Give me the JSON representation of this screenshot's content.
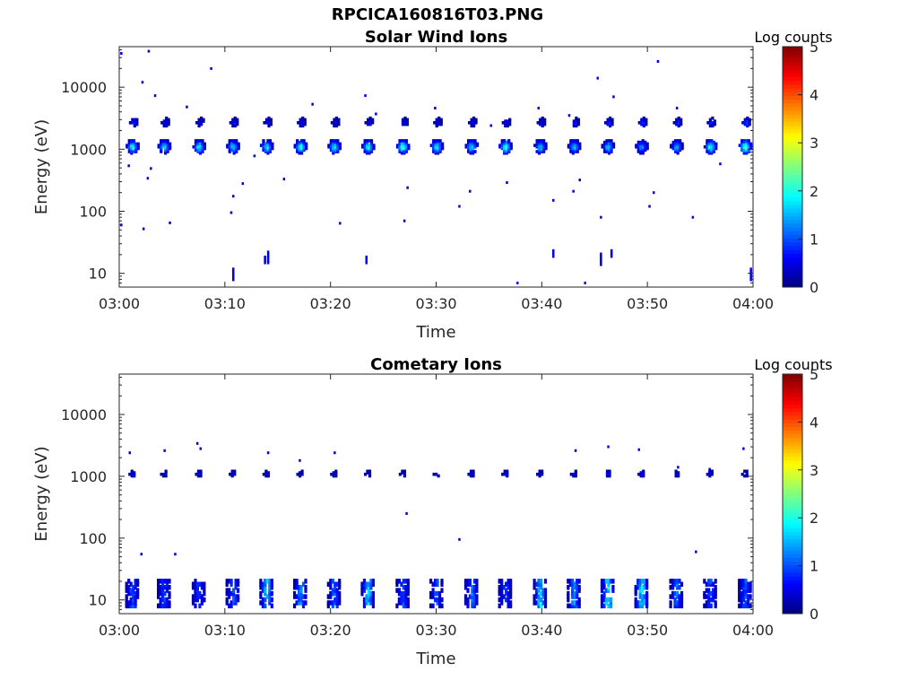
{
  "page_title": "RPCICA160816T03.PNG",
  "chart_data": [
    {
      "type": "heatmap",
      "title": "Solar Wind Ions",
      "xlabel": "Time",
      "ylabel": "Energy (eV)",
      "x_ticks": [
        "03:00",
        "03:10",
        "03:20",
        "03:30",
        "03:40",
        "03:50",
        "04:00"
      ],
      "xlim_minutes": [
        0,
        60
      ],
      "y_ticks": [
        "10",
        "100",
        "1000",
        "10000"
      ],
      "y_tick_values": [
        10,
        100,
        1000,
        10000
      ],
      "ylim": [
        6,
        45000
      ],
      "yscale": "log",
      "colorbar_label": "Log counts",
      "colorbar_ticks": [
        "0",
        "1",
        "2",
        "3",
        "4",
        "5"
      ],
      "clim": [
        0,
        5
      ],
      "grid": false,
      "scan_minutes": [
        1.3,
        4.3,
        7.6,
        10.8,
        14.0,
        17.2,
        20.4,
        23.6,
        26.9,
        30.1,
        33.4,
        36.6,
        39.9,
        43.1,
        46.3,
        49.5,
        52.8,
        56.0,
        59.3
      ],
      "core_energy_ev": 1100,
      "core_peak_log_counts": [
        2.0,
        1.7,
        1.8,
        1.6,
        1.8,
        1.9,
        1.8,
        1.9,
        2.2,
        1.9,
        1.8,
        2.1,
        1.6,
        1.6,
        1.5,
        1.3,
        1.4,
        2.1,
        2.4
      ],
      "secondary_energy_ev": 2700,
      "secondary_peak_log_counts": [
        0.8,
        0.7,
        0.6,
        0.7,
        0.6,
        0.6,
        0.6,
        0.6,
        0.6,
        0.5,
        0.6,
        0.6,
        0.6,
        0.8,
        0.9,
        0.9,
        0.8,
        0.9,
        1.0
      ],
      "sparse_points": [
        {
          "t": 0.2,
          "e": 35000,
          "v": 0.6
        },
        {
          "t": 2.2,
          "e": 12000,
          "v": 0.5
        },
        {
          "t": 2.8,
          "e": 38000,
          "v": 0.5
        },
        {
          "t": 3.4,
          "e": 7300,
          "v": 0.4
        },
        {
          "t": 0.9,
          "e": 540,
          "v": 0.5
        },
        {
          "t": 2.7,
          "e": 340,
          "v": 0.5
        },
        {
          "t": 3.0,
          "e": 490,
          "v": 0.4
        },
        {
          "t": 0.2,
          "e": 60,
          "v": 0.5
        },
        {
          "t": 2.3,
          "e": 52,
          "v": 0.4
        },
        {
          "t": 4.8,
          "e": 65,
          "v": 0.3
        },
        {
          "t": 6.4,
          "e": 4800,
          "v": 0.4
        },
        {
          "t": 8.7,
          "e": 20000,
          "v": 0.5
        },
        {
          "t": 10.8,
          "e": 175,
          "v": 0.5
        },
        {
          "t": 11.7,
          "e": 280,
          "v": 0.4
        },
        {
          "t": 10.6,
          "e": 95,
          "v": 0.4
        },
        {
          "t": 12.8,
          "e": 780,
          "v": 0.5
        },
        {
          "t": 15.6,
          "e": 330,
          "v": 0.4
        },
        {
          "t": 18.3,
          "e": 5300,
          "v": 0.4
        },
        {
          "t": 20.9,
          "e": 64,
          "v": 0.4
        },
        {
          "t": 23.3,
          "e": 7300,
          "v": 0.5
        },
        {
          "t": 24.3,
          "e": 3700,
          "v": 0.4
        },
        {
          "t": 27.3,
          "e": 240,
          "v": 0.4
        },
        {
          "t": 27.0,
          "e": 70,
          "v": 0.3
        },
        {
          "t": 29.9,
          "e": 4600,
          "v": 0.4
        },
        {
          "t": 32.2,
          "e": 120,
          "v": 0.5
        },
        {
          "t": 33.2,
          "e": 210,
          "v": 0.4
        },
        {
          "t": 35.2,
          "e": 2400,
          "v": 0.4
        },
        {
          "t": 36.7,
          "e": 290,
          "v": 0.4
        },
        {
          "t": 37.7,
          "e": 7,
          "v": 0.7
        },
        {
          "t": 39.7,
          "e": 4600,
          "v": 0.4
        },
        {
          "t": 41.1,
          "e": 150,
          "v": 0.4
        },
        {
          "t": 42.6,
          "e": 3500,
          "v": 0.4
        },
        {
          "t": 43.0,
          "e": 210,
          "v": 0.4
        },
        {
          "t": 43.6,
          "e": 320,
          "v": 0.4
        },
        {
          "t": 44.1,
          "e": 7,
          "v": 0.7
        },
        {
          "t": 45.3,
          "e": 14000,
          "v": 0.5
        },
        {
          "t": 45.6,
          "e": 80,
          "v": 0.6
        },
        {
          "t": 46.8,
          "e": 7000,
          "v": 0.4
        },
        {
          "t": 50.2,
          "e": 120,
          "v": 0.4
        },
        {
          "t": 50.6,
          "e": 200,
          "v": 0.4
        },
        {
          "t": 51.0,
          "e": 26000,
          "v": 0.5
        },
        {
          "t": 52.8,
          "e": 4600,
          "v": 0.4
        },
        {
          "t": 54.3,
          "e": 80,
          "v": 0.6
        },
        {
          "t": 56.9,
          "e": 580,
          "v": 0.4
        }
      ],
      "low_energy_streaks": [
        {
          "t": 10.8,
          "e_lo": 8,
          "e_hi": 12,
          "v": 0.5
        },
        {
          "t": 13.8,
          "e_lo": 15,
          "e_hi": 19,
          "v": 0.5
        },
        {
          "t": 14.1,
          "e_lo": 15,
          "e_hi": 23,
          "v": 0.5
        },
        {
          "t": 23.4,
          "e_lo": 15,
          "e_hi": 19,
          "v": 0.5
        },
        {
          "t": 41.1,
          "e_lo": 19,
          "e_hi": 23,
          "v": 0.5
        },
        {
          "t": 45.6,
          "e_lo": 14,
          "e_hi": 22,
          "v": 0.5
        },
        {
          "t": 46.6,
          "e_lo": 19,
          "e_hi": 23,
          "v": 0.5
        },
        {
          "t": 59.8,
          "e_lo": 8,
          "e_hi": 12,
          "v": 0.6
        }
      ]
    },
    {
      "type": "heatmap",
      "title": "Cometary Ions",
      "xlabel": "Time",
      "ylabel": "Energy (eV)",
      "x_ticks": [
        "03:00",
        "03:10",
        "03:20",
        "03:30",
        "03:40",
        "03:50",
        "04:00"
      ],
      "xlim_minutes": [
        0,
        60
      ],
      "y_ticks": [
        "10",
        "100",
        "1000",
        "10000"
      ],
      "y_tick_values": [
        10,
        100,
        1000,
        10000
      ],
      "ylim": [
        6,
        45000
      ],
      "yscale": "log",
      "colorbar_label": "Log counts",
      "colorbar_ticks": [
        "0",
        "1",
        "2",
        "3",
        "4",
        "5"
      ],
      "clim": [
        0,
        5
      ],
      "grid": false,
      "scan_minutes": [
        1.3,
        4.3,
        7.6,
        10.8,
        14.0,
        17.2,
        20.4,
        23.6,
        26.9,
        30.1,
        33.4,
        36.6,
        39.9,
        43.1,
        46.3,
        49.5,
        52.8,
        56.0,
        59.3
      ],
      "mid_energy_ev": 1100,
      "mid_peak_log_counts": [
        0.6,
        0.5,
        0.5,
        0.5,
        0.5,
        0.5,
        0.5,
        0.5,
        0.5,
        0.5,
        0.5,
        0.5,
        0.5,
        0.5,
        0.6,
        0.6,
        0.5,
        0.5,
        0.5
      ],
      "low_energy_band_ev": [
        8,
        22
      ],
      "low_peak_log_counts": [
        1.0,
        0.9,
        0.9,
        1.0,
        1.6,
        1.3,
        1.1,
        1.6,
        1.0,
        1.0,
        1.2,
        0.9,
        1.6,
        1.3,
        1.8,
        1.8,
        1.1,
        1.0,
        1.0
      ],
      "sparse_points": [
        {
          "t": 1.0,
          "e": 2400,
          "v": 0.4
        },
        {
          "t": 4.3,
          "e": 2600,
          "v": 0.4
        },
        {
          "t": 7.4,
          "e": 3400,
          "v": 0.4
        },
        {
          "t": 7.7,
          "e": 2800,
          "v": 0.4
        },
        {
          "t": 14.1,
          "e": 2400,
          "v": 0.4
        },
        {
          "t": 17.1,
          "e": 1800,
          "v": 0.4
        },
        {
          "t": 20.4,
          "e": 2400,
          "v": 0.4
        },
        {
          "t": 27.2,
          "e": 250,
          "v": 0.4
        },
        {
          "t": 32.2,
          "e": 95,
          "v": 0.4
        },
        {
          "t": 2.1,
          "e": 55,
          "v": 0.4
        },
        {
          "t": 5.3,
          "e": 55,
          "v": 0.4
        },
        {
          "t": 54.6,
          "e": 60,
          "v": 0.4
        },
        {
          "t": 43.2,
          "e": 2600,
          "v": 0.4
        },
        {
          "t": 46.3,
          "e": 3000,
          "v": 0.5
        },
        {
          "t": 49.2,
          "e": 2700,
          "v": 0.5
        },
        {
          "t": 55.9,
          "e": 1300,
          "v": 0.4
        },
        {
          "t": 59.1,
          "e": 2800,
          "v": 0.4
        },
        {
          "t": 52.9,
          "e": 1400,
          "v": 0.5
        }
      ]
    }
  ]
}
